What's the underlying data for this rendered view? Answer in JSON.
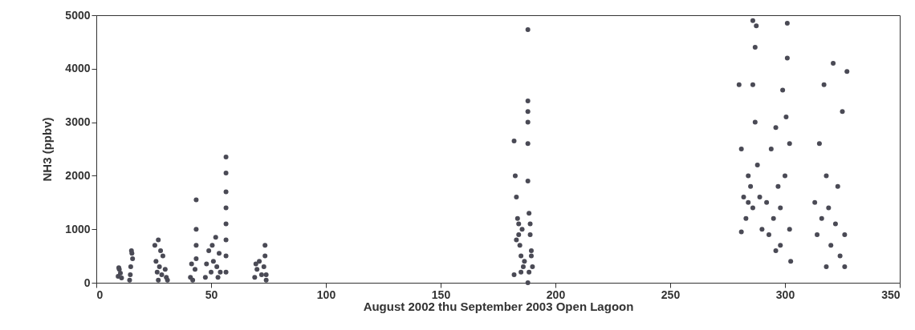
{
  "chart_data": {
    "type": "scatter",
    "xlabel": "August 2002 thu September 2003 Open Lagoon",
    "ylabel": "NH3 (ppbv)",
    "xlim": [
      0,
      350
    ],
    "xticks": [
      0,
      50,
      100,
      150,
      200,
      250,
      300,
      350
    ],
    "ylim": [
      0,
      5000
    ],
    "yticks": [
      0,
      1000,
      2000,
      3000,
      4000,
      5000
    ],
    "marker": "circle",
    "series": [
      {
        "color": "#4a4a55",
        "x": [
          9.5,
          10,
          10.5,
          11,
          9.8,
          14.5,
          15,
          15.3,
          15.8,
          14.8,
          15.5,
          25.5,
          26,
          27,
          27.5,
          28,
          28.5,
          29,
          30,
          30.5,
          31,
          27,
          26.5,
          41,
          41.5,
          42,
          43,
          43.5,
          43.5,
          43.5,
          43.5,
          47.5,
          48,
          49,
          50,
          50.5,
          51,
          52,
          52.5,
          53,
          53.5,
          54,
          56.5,
          56.5,
          56.5,
          56.5,
          56.5,
          56.5,
          56.5,
          56.5,
          69,
          69.5,
          70,
          71,
          72,
          73,
          73.5,
          73.5,
          74,
          74,
          182,
          182.5,
          183,
          183.5,
          184,
          184.5,
          185,
          185.5,
          186,
          183,
          184,
          182,
          186.5,
          185,
          188,
          188,
          188,
          188,
          188,
          188,
          188.5,
          189,
          189.5,
          190,
          188.5,
          189,
          189.5,
          188,
          280,
          281,
          282,
          283,
          284,
          285,
          286,
          287,
          287.5,
          287,
          286,
          288,
          289,
          290,
          281,
          284,
          286,
          292,
          293,
          294,
          295,
          296,
          297,
          298,
          299,
          300,
          301,
          301,
          300.5,
          302,
          302.5,
          302,
          296,
          298,
          313,
          314,
          315,
          316,
          317,
          318,
          319,
          320,
          321,
          322,
          323,
          324,
          325,
          326,
          327,
          326,
          318
        ],
        "values": [
          120,
          250,
          180,
          90,
          280,
          50,
          300,
          600,
          450,
          150,
          550,
          700,
          400,
          800,
          300,
          600,
          150,
          500,
          250,
          100,
          50,
          50,
          200,
          100,
          350,
          50,
          250,
          1550,
          1000,
          700,
          450,
          100,
          350,
          600,
          200,
          700,
          400,
          850,
          300,
          100,
          550,
          200,
          2350,
          2050,
          1700,
          1400,
          1100,
          800,
          500,
          200,
          100,
          350,
          250,
          400,
          150,
          300,
          700,
          500,
          50,
          150,
          2650,
          2000,
          1600,
          1200,
          900,
          700,
          500,
          1000,
          300,
          800,
          1100,
          150,
          400,
          200,
          4730,
          3400,
          3200,
          3000,
          2600,
          1900,
          1300,
          900,
          600,
          300,
          200,
          1100,
          500,
          0,
          3700,
          2500,
          1600,
          1200,
          2000,
          1800,
          1400,
          3000,
          4800,
          4400,
          3700,
          2200,
          1600,
          1000,
          950,
          1500,
          4900,
          1500,
          900,
          2500,
          1200,
          600,
          1800,
          1400,
          3600,
          2000,
          4850,
          4200,
          3100,
          1000,
          400,
          2600,
          2900,
          700,
          1500,
          900,
          2600,
          1200,
          3700,
          2000,
          1400,
          700,
          4100,
          1100,
          1800,
          500,
          3200,
          900,
          3950,
          300,
          300
        ]
      }
    ]
  }
}
